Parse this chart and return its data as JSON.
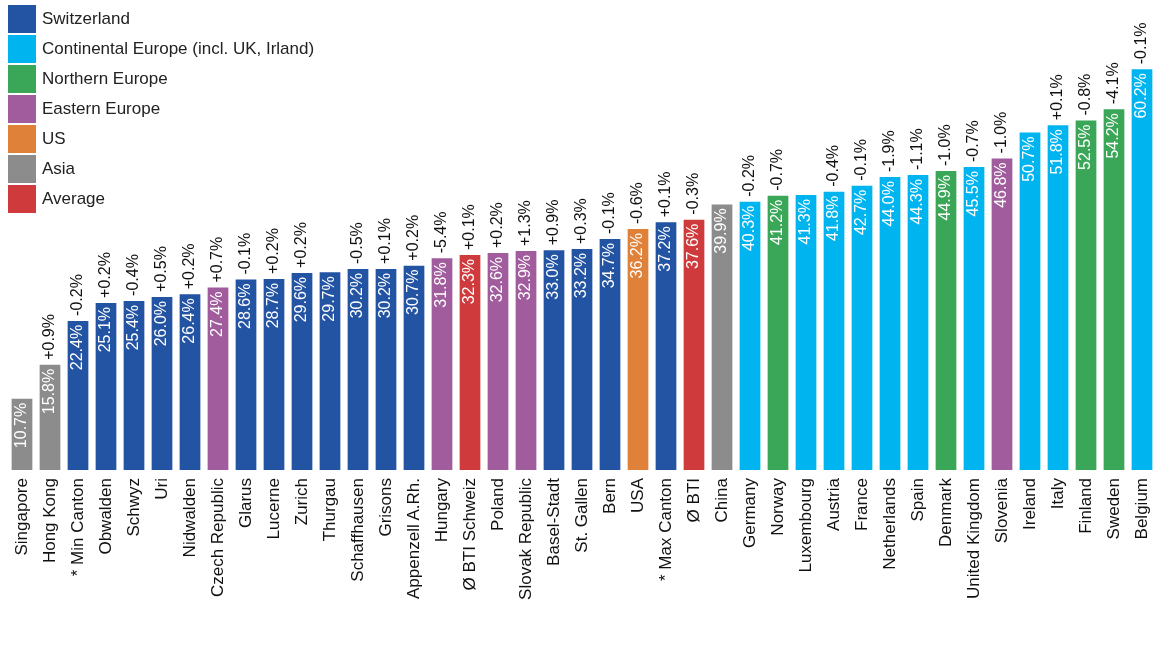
{
  "chart_data": {
    "type": "bar",
    "legend": "top left",
    "data_labels": true,
    "categories": [
      "Singapore",
      "Hong Kong",
      "* Min Canton",
      "Obwalden",
      "Schwyz",
      "Uri",
      "Nidwalden",
      "Czech Republic",
      "Glarus",
      "Lucerne",
      "Zurich",
      "Thurgau",
      "Schaffhausen",
      "Grisons",
      "Appenzell A.Rh.",
      "Hungary",
      "Ø BTI Schweiz",
      "Poland",
      "Slovak Republic",
      "Basel-Stadt",
      "St. Gallen",
      "Bern",
      "USA",
      "* Max Canton",
      "Ø BTI",
      "China",
      "Germany",
      "Norway",
      "Luxembourg",
      "Austria",
      "France",
      "Netherlands",
      "Spain",
      "Denmark",
      "United Kingdom",
      "Slovenia",
      "Ireland",
      "Italy",
      "Finland",
      "Sweden",
      "Belgium"
    ],
    "series": [
      {
        "name": "Switzerland",
        "color": "#2353a3",
        "values": [
          null,
          null,
          22.4,
          25.1,
          25.4,
          26.0,
          26.4,
          null,
          28.6,
          28.7,
          29.6,
          29.7,
          30.2,
          30.2,
          30.7,
          null,
          null,
          null,
          null,
          33.0,
          33.2,
          34.7,
          null,
          37.2,
          null,
          null,
          null,
          null,
          null,
          null,
          null,
          null,
          null,
          null,
          null,
          null,
          null,
          null,
          null,
          null,
          null
        ],
        "value_labels": [
          null,
          null,
          "22.4%",
          "25.1%",
          "25.4%",
          "26.0%",
          "26.4%",
          null,
          "28.6%",
          "28.7%",
          "29.6%",
          "29.7%",
          "30.2%",
          "30.2%",
          "30.7%",
          null,
          null,
          null,
          null,
          "33.0%",
          "33.2%",
          "34.7%",
          null,
          "37.2%",
          null,
          null,
          null,
          null,
          null,
          null,
          null,
          null,
          null,
          null,
          null,
          null,
          null,
          null,
          null,
          null,
          null
        ]
      },
      {
        "name": "Continental Europe (incl. UK, Irland)",
        "color": "#00b4f0",
        "values": [
          null,
          null,
          null,
          null,
          null,
          null,
          null,
          null,
          null,
          null,
          null,
          null,
          null,
          null,
          null,
          null,
          null,
          null,
          null,
          null,
          null,
          null,
          null,
          null,
          null,
          null,
          40.3,
          null,
          41.3,
          41.8,
          42.7,
          44.0,
          44.3,
          null,
          45.5,
          null,
          50.7,
          51.8,
          null,
          null,
          60.2
        ],
        "value_labels": [
          null,
          null,
          null,
          null,
          null,
          null,
          null,
          null,
          null,
          null,
          null,
          null,
          null,
          null,
          null,
          null,
          null,
          null,
          null,
          null,
          null,
          null,
          null,
          null,
          null,
          null,
          "40.3%",
          null,
          "41.3%",
          "41.8%",
          "42.7%",
          "44.0%",
          "44.3%",
          null,
          "45.5%",
          null,
          "50.7%",
          "51.8%",
          null,
          null,
          "60.2%"
        ]
      },
      {
        "name": "Northern Europe",
        "color": "#3aa657",
        "values": [
          null,
          null,
          null,
          null,
          null,
          null,
          null,
          null,
          null,
          null,
          null,
          null,
          null,
          null,
          null,
          null,
          null,
          null,
          null,
          null,
          null,
          null,
          null,
          null,
          null,
          null,
          null,
          41.2,
          null,
          null,
          null,
          null,
          null,
          44.9,
          null,
          null,
          null,
          null,
          52.5,
          54.2,
          null
        ],
        "value_labels": [
          null,
          null,
          null,
          null,
          null,
          null,
          null,
          null,
          null,
          null,
          null,
          null,
          null,
          null,
          null,
          null,
          null,
          null,
          null,
          null,
          null,
          null,
          null,
          null,
          null,
          null,
          null,
          "41.2%",
          null,
          null,
          null,
          null,
          null,
          "44.9%",
          null,
          null,
          null,
          null,
          "52.5%",
          "54.2%",
          null
        ]
      },
      {
        "name": "Eastern Europe",
        "color": "#a05c9c",
        "values": [
          null,
          null,
          null,
          null,
          null,
          null,
          null,
          27.4,
          null,
          null,
          null,
          null,
          null,
          null,
          null,
          31.8,
          null,
          32.6,
          32.9,
          null,
          null,
          null,
          null,
          null,
          null,
          null,
          null,
          null,
          null,
          null,
          null,
          null,
          null,
          null,
          null,
          46.8,
          null,
          null,
          null,
          null,
          null
        ],
        "value_labels": [
          null,
          null,
          null,
          null,
          null,
          null,
          null,
          "27.4%",
          null,
          null,
          null,
          null,
          null,
          null,
          null,
          "31.8%",
          null,
          "32.6%",
          "32.9%",
          null,
          null,
          null,
          null,
          null,
          null,
          null,
          null,
          null,
          null,
          null,
          null,
          null,
          null,
          null,
          null,
          "46.8%",
          null,
          null,
          null,
          null,
          null
        ]
      },
      {
        "name": "US",
        "color": "#e0813a",
        "values": [
          null,
          null,
          null,
          null,
          null,
          null,
          null,
          null,
          null,
          null,
          null,
          null,
          null,
          null,
          null,
          null,
          null,
          null,
          null,
          null,
          null,
          null,
          36.2,
          null,
          null,
          null,
          null,
          null,
          null,
          null,
          null,
          null,
          null,
          null,
          null,
          null,
          null,
          null,
          null,
          null,
          null
        ],
        "value_labels": [
          null,
          null,
          null,
          null,
          null,
          null,
          null,
          null,
          null,
          null,
          null,
          null,
          null,
          null,
          null,
          null,
          null,
          null,
          null,
          null,
          null,
          null,
          "36.2%",
          null,
          null,
          null,
          null,
          null,
          null,
          null,
          null,
          null,
          null,
          null,
          null,
          null,
          null,
          null,
          null,
          null,
          null
        ]
      },
      {
        "name": "Asia",
        "color": "#8c8c8c",
        "values": [
          10.7,
          15.8,
          null,
          null,
          null,
          null,
          null,
          null,
          null,
          null,
          null,
          null,
          null,
          null,
          null,
          null,
          null,
          null,
          null,
          null,
          null,
          null,
          null,
          null,
          null,
          39.9,
          null,
          null,
          null,
          null,
          null,
          null,
          null,
          null,
          null,
          null,
          null,
          null,
          null,
          null,
          null
        ],
        "value_labels": [
          "10.7%",
          "15.8%",
          null,
          null,
          null,
          null,
          null,
          null,
          null,
          null,
          null,
          null,
          null,
          null,
          null,
          null,
          null,
          null,
          null,
          null,
          null,
          null,
          null,
          null,
          null,
          "39.9%",
          null,
          null,
          null,
          null,
          null,
          null,
          null,
          null,
          null,
          null,
          null,
          null,
          null,
          null,
          null
        ]
      },
      {
        "name": "Average",
        "color": "#cf3a3c",
        "values": [
          null,
          null,
          null,
          null,
          null,
          null,
          null,
          null,
          null,
          null,
          null,
          null,
          null,
          null,
          null,
          null,
          32.3,
          null,
          null,
          null,
          null,
          null,
          null,
          null,
          37.6,
          null,
          null,
          null,
          null,
          null,
          null,
          null,
          null,
          null,
          null,
          null,
          null,
          null,
          null,
          null,
          null
        ],
        "value_labels": [
          null,
          null,
          null,
          null,
          null,
          null,
          null,
          null,
          null,
          null,
          null,
          null,
          null,
          null,
          null,
          null,
          "32.3%",
          null,
          null,
          null,
          null,
          null,
          null,
          null,
          "37.6%",
          null,
          null,
          null,
          null,
          null,
          null,
          null,
          null,
          null,
          null,
          null,
          null,
          null,
          null,
          null,
          null
        ]
      }
    ],
    "annotations": [
      {
        "text": "+0.9%",
        "x": "Hong Kong",
        "y": 15.8
      },
      {
        "text": "-0.2%",
        "x": "* Min Canton",
        "y": 22.4
      },
      {
        "text": "+0.2%",
        "x": "Obwalden",
        "y": 25.1
      },
      {
        "text": "-0.4%",
        "x": "Schwyz",
        "y": 25.4
      },
      {
        "text": "+0.5%",
        "x": "Uri",
        "y": 26.0
      },
      {
        "text": "+0.2%",
        "x": "Nidwalden",
        "y": 26.4
      },
      {
        "text": "+0.7%",
        "x": "Czech Republic",
        "y": 27.4
      },
      {
        "text": "-0.1%",
        "x": "Glarus",
        "y": 28.6
      },
      {
        "text": "+0.2%",
        "x": "Lucerne",
        "y": 28.7
      },
      {
        "text": "+0.2%",
        "x": "Zurich",
        "y": 29.6
      },
      {
        "text": "-0.5%",
        "x": "Schaffhausen",
        "y": 30.2
      },
      {
        "text": "+0.1%",
        "x": "Grisons",
        "y": 30.2
      },
      {
        "text": "+0.2%",
        "x": "Appenzell A.Rh.",
        "y": 30.7
      },
      {
        "text": "-5.4%",
        "x": "Hungary",
        "y": 31.8
      },
      {
        "text": "+0.1%",
        "x": "Ø BTI Schweiz",
        "y": 32.3
      },
      {
        "text": "+0.2%",
        "x": "Poland",
        "y": 32.6
      },
      {
        "text": "+1.3%",
        "x": "Slovak Republic",
        "y": 32.9
      },
      {
        "text": "+0.9%",
        "x": "Basel-Stadt",
        "y": 33.0
      },
      {
        "text": "+0.3%",
        "x": "St. Gallen",
        "y": 33.2
      },
      {
        "text": "-0.1%",
        "x": "Bern",
        "y": 34.7
      },
      {
        "text": "-0.6%",
        "x": "USA",
        "y": 36.2
      },
      {
        "text": "+0.1%",
        "x": "* Max Canton",
        "y": 37.2
      },
      {
        "text": "-0.3%",
        "x": "Ø BTI",
        "y": 37.6
      },
      {
        "text": "-0.2%",
        "x": "Germany",
        "y": 40.3
      },
      {
        "text": "-0.7%",
        "x": "Norway",
        "y": 41.2
      },
      {
        "text": "-0.4%",
        "x": "Austria",
        "y": 41.8
      },
      {
        "text": "-0.1%",
        "x": "France",
        "y": 42.7
      },
      {
        "text": "-1.9%",
        "x": "Netherlands",
        "y": 44.0
      },
      {
        "text": "-1.1%",
        "x": "Spain",
        "y": 44.3
      },
      {
        "text": "-1.0%",
        "x": "Denmark",
        "y": 44.9
      },
      {
        "text": "-0.7%",
        "x": "United Kingdom",
        "y": 45.5
      },
      {
        "text": "-1.0%",
        "x": "Slovenia",
        "y": 46.8
      },
      {
        "text": "+0.1%",
        "x": "Italy",
        "y": 51.8
      },
      {
        "text": "-0.8%",
        "x": "Finland",
        "y": 52.5
      },
      {
        "text": "-4.1%",
        "x": "Sweden",
        "y": 54.2
      },
      {
        "text": "-0.1%",
        "x": "Belgium",
        "y": 60.2
      }
    ]
  }
}
